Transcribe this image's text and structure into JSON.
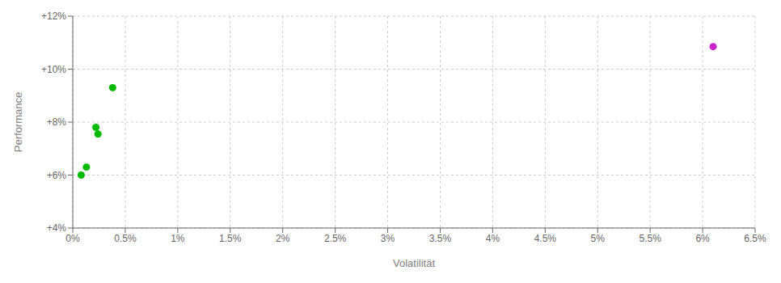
{
  "chart_data": {
    "type": "scatter",
    "xlabel": "Volatilität",
    "ylabel": "Performance",
    "xlim": [
      0,
      6.5
    ],
    "ylim": [
      4,
      12
    ],
    "xticks": [
      {
        "value": 0,
        "label": "0%"
      },
      {
        "value": 0.5,
        "label": "0.5%"
      },
      {
        "value": 1.0,
        "label": "1%"
      },
      {
        "value": 1.5,
        "label": "1.5%"
      },
      {
        "value": 2.0,
        "label": "2%"
      },
      {
        "value": 2.5,
        "label": "2.5%"
      },
      {
        "value": 3.0,
        "label": "3%"
      },
      {
        "value": 3.5,
        "label": "3.5%"
      },
      {
        "value": 4.0,
        "label": "4%"
      },
      {
        "value": 4.5,
        "label": "4.5%"
      },
      {
        "value": 5.0,
        "label": "5%"
      },
      {
        "value": 5.5,
        "label": "5.5%"
      },
      {
        "value": 6.0,
        "label": "6%"
      },
      {
        "value": 6.5,
        "label": "6.5%"
      }
    ],
    "yticks": [
      {
        "value": 4,
        "label": "+4%"
      },
      {
        "value": 6,
        "label": "+6%"
      },
      {
        "value": 8,
        "label": "+8%"
      },
      {
        "value": 10,
        "label": "+10%"
      },
      {
        "value": 12,
        "label": "+12%"
      }
    ],
    "grid": true,
    "series": [
      {
        "color": "#00bb00",
        "x": [
          0.38,
          0.22,
          0.24,
          0.13,
          0.08
        ],
        "values": [
          9.3,
          7.8,
          7.55,
          6.3,
          6.0
        ]
      },
      {
        "color": "#cc22cc",
        "x": [
          6.1
        ],
        "values": [
          10.85
        ]
      }
    ]
  }
}
